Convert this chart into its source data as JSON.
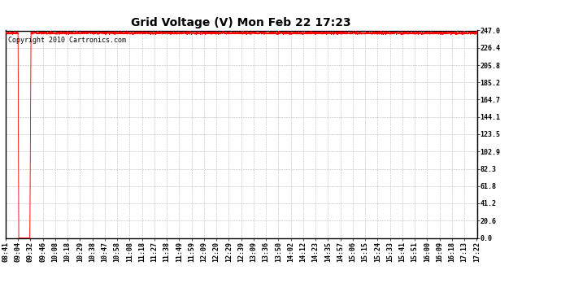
{
  "title": "Grid Voltage (V) Mon Feb 22 17:23",
  "copyright_text": "Copyright 2010 Cartronics.com",
  "line_color": "#ff0000",
  "bg_color": "#ffffff",
  "plot_bg_color": "#ffffff",
  "grid_color": "#bbbbbb",
  "border_color": "#000000",
  "y_ticks": [
    0.0,
    20.6,
    41.2,
    61.8,
    82.3,
    102.9,
    123.5,
    144.1,
    164.7,
    185.2,
    205.8,
    226.4,
    247.0
  ],
  "y_min": 0.0,
  "y_max": 247.0,
  "x_tick_labels": [
    "08:41",
    "09:04",
    "09:32",
    "09:46",
    "10:08",
    "10:18",
    "10:29",
    "10:38",
    "10:47",
    "10:58",
    "11:08",
    "11:18",
    "11:27",
    "11:38",
    "11:49",
    "11:59",
    "12:09",
    "12:20",
    "12:29",
    "12:39",
    "13:09",
    "13:36",
    "13:50",
    "14:02",
    "14:12",
    "14:23",
    "14:35",
    "14:57",
    "15:06",
    "15:15",
    "15:24",
    "15:33",
    "15:41",
    "15:51",
    "16:00",
    "16:09",
    "16:18",
    "17:13",
    "17:22"
  ],
  "steady_voltage": 244.0,
  "title_fontsize": 10,
  "tick_fontsize": 6,
  "copyright_fontsize": 6
}
